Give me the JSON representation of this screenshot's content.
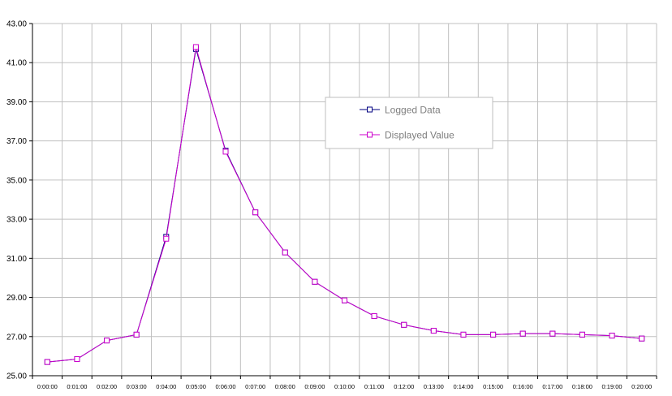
{
  "chart_data": {
    "type": "line",
    "x": [
      "0:00:00",
      "0:01:00",
      "0:02:00",
      "0:03:00",
      "0:04:00",
      "0:05:00",
      "0:06:00",
      "0:07:00",
      "0:08:00",
      "0:09:00",
      "0:10:00",
      "0:11:00",
      "0:12:00",
      "0:13:00",
      "0:14:00",
      "0:15:00",
      "0:16:00",
      "0:17:00",
      "0:18:00",
      "0:19:00",
      "0:20:00"
    ],
    "y_ticks": [
      "25.00",
      "27.00",
      "29.00",
      "31.00",
      "33.00",
      "35.00",
      "37.00",
      "39.00",
      "41.00",
      "43.00"
    ],
    "ylim": [
      25,
      43
    ],
    "grid": true,
    "legend_position": "upper-center-right",
    "series": [
      {
        "name": "Logged Data",
        "color": "#000080",
        "x": [
          0.5,
          1.5,
          2.5,
          3.5,
          4.5,
          5.5,
          6.5,
          7.5,
          8.5,
          9.5,
          10.5,
          11.5,
          12.5,
          13.5,
          14.5,
          15.5,
          16.5,
          17.5,
          18.5,
          19.5,
          20.5
        ],
        "values": [
          25.7,
          25.85,
          26.8,
          27.1,
          32.1,
          41.7,
          36.5,
          33.35,
          31.3,
          29.8,
          28.85,
          28.05,
          27.6,
          27.3,
          27.1,
          27.1,
          27.15,
          27.15,
          27.1,
          27.05,
          26.9
        ]
      },
      {
        "name": "Displayed Value",
        "color": "#cc00cc",
        "x": [
          0.5,
          1.5,
          2.5,
          3.5,
          4.5,
          5.5,
          6.5,
          7.5,
          8.5,
          9.5,
          10.5,
          11.5,
          12.5,
          13.5,
          14.5,
          15.5,
          16.5,
          17.5,
          18.5,
          19.5,
          20.5
        ],
        "values": [
          25.7,
          25.85,
          26.8,
          27.1,
          32.0,
          41.8,
          36.45,
          33.35,
          31.3,
          29.8,
          28.85,
          28.05,
          27.6,
          27.3,
          27.1,
          27.1,
          27.15,
          27.15,
          27.1,
          27.05,
          26.9
        ]
      }
    ]
  }
}
